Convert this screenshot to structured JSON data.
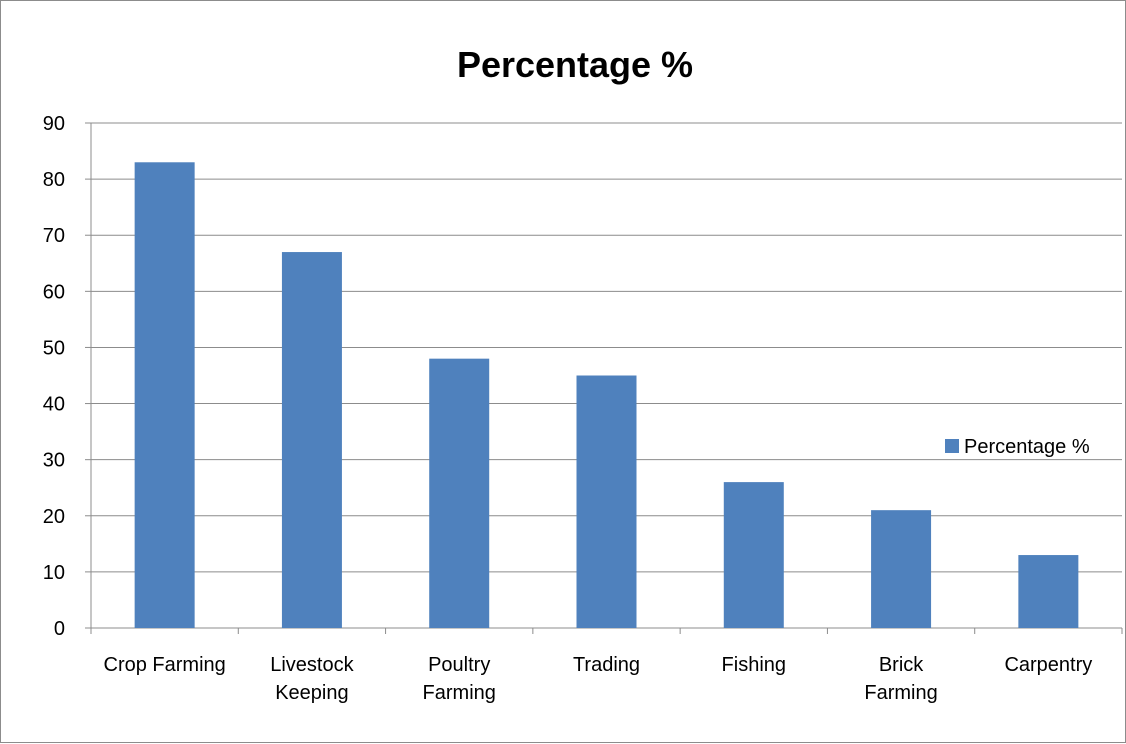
{
  "chart_data": {
    "type": "bar",
    "title": "Percentage %",
    "xlabel": "",
    "ylabel": "",
    "categories": [
      [
        "Crop Farming"
      ],
      [
        "Livestock",
        "Keeping"
      ],
      [
        "Poultry",
        "Farming"
      ],
      [
        "Trading"
      ],
      [
        "Fishing"
      ],
      [
        "Brick",
        "Farming"
      ],
      [
        "Carpentry"
      ]
    ],
    "series": [
      {
        "name": "Percentage %",
        "values": [
          83,
          67,
          48,
          45,
          26,
          21,
          13
        ],
        "color": "#4f81bd"
      }
    ],
    "ylim": [
      0,
      90
    ],
    "yticks": [
      0,
      10,
      20,
      30,
      40,
      50,
      60,
      70,
      80,
      90
    ],
    "grid": true,
    "legend_position": "right"
  }
}
